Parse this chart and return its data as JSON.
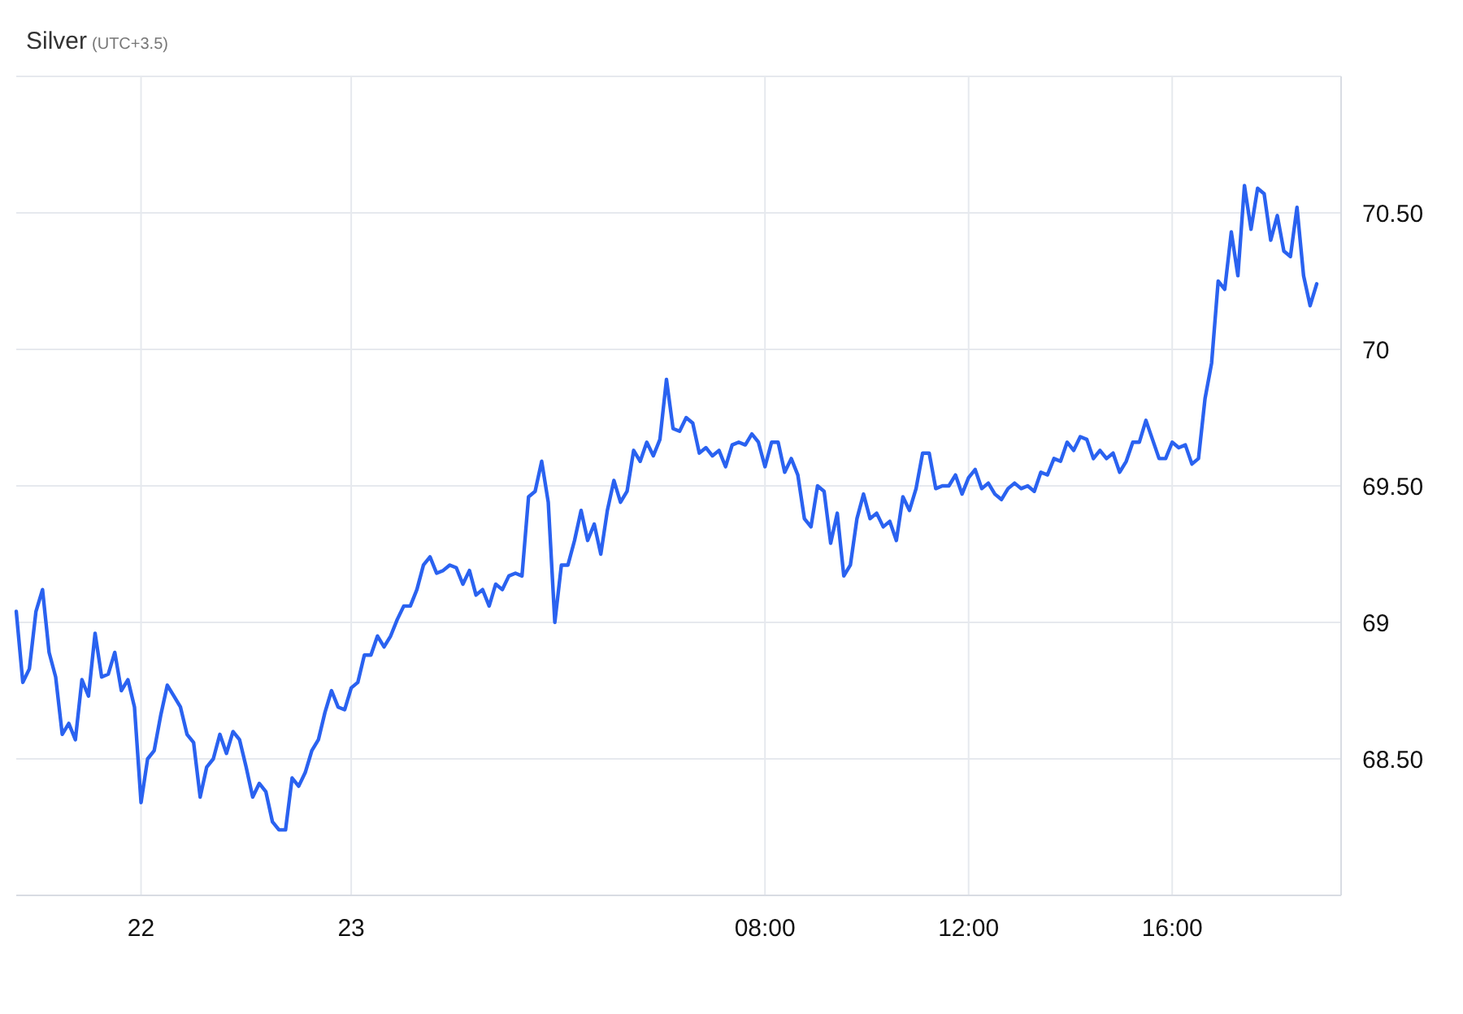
{
  "chart_data": {
    "type": "line",
    "title": "Silver",
    "subtitle": "(UTC+3.5)",
    "categories": [
      null,
      null,
      null,
      null,
      null,
      null,
      null,
      null,
      null,
      null,
      null,
      null,
      null,
      null,
      null,
      null,
      null,
      null,
      null,
      "22",
      null,
      null,
      null,
      null,
      null,
      null,
      null,
      null,
      null,
      null,
      null,
      null,
      null,
      null,
      null,
      null,
      null,
      null,
      null,
      null,
      null,
      null,
      null,
      null,
      null,
      null,
      null,
      null,
      null,
      null,
      null,
      "23",
      null,
      null,
      null,
      null,
      null,
      null,
      null,
      null,
      null,
      null,
      null,
      null,
      null,
      null,
      null,
      null,
      null,
      null,
      null,
      null,
      null,
      null,
      null,
      null,
      null,
      null,
      null,
      null,
      null,
      null,
      null,
      null,
      null,
      null,
      null,
      null,
      null,
      null,
      null,
      null,
      null,
      null,
      null,
      null,
      null,
      null,
      null,
      null,
      null,
      null,
      null,
      null,
      null,
      null,
      null,
      null,
      null,
      null,
      null,
      null,
      null,
      null,
      "08:00",
      null,
      null,
      null,
      null,
      null,
      null,
      null,
      null,
      null,
      null,
      null,
      null,
      null,
      null,
      null,
      null,
      null,
      null,
      null,
      null,
      null,
      null,
      null,
      null,
      null,
      null,
      null,
      null,
      null,
      null,
      "12:00",
      null,
      null,
      null,
      null,
      null,
      null,
      null,
      null,
      null,
      null,
      null,
      null,
      null,
      null,
      null,
      null,
      null,
      null,
      null,
      null,
      null,
      null,
      null,
      null,
      null,
      null,
      null,
      null,
      null,
      null,
      "16:00",
      null,
      null,
      null,
      null,
      null,
      null,
      null,
      null,
      null,
      null,
      null,
      null,
      null,
      null,
      null,
      null,
      null,
      null,
      null,
      null,
      null,
      null
    ],
    "ylim": [
      68,
      71
    ],
    "yticks": [
      {
        "value": 68.5,
        "label": "68.50"
      },
      69,
      {
        "value": 69.5,
        "label": "69.50"
      },
      70,
      {
        "value": 70.5,
        "label": "70.50"
      }
    ],
    "grid": true,
    "line_style": "solid",
    "series": [
      {
        "color": "#2a62f0",
        "values": [
          69.04,
          68.78,
          68.83,
          69.04,
          69.12,
          68.89,
          68.8,
          68.59,
          68.63,
          68.57,
          68.79,
          68.73,
          68.96,
          68.8,
          68.81,
          68.89,
          68.75,
          68.79,
          68.69,
          68.34,
          68.5,
          68.53,
          68.66,
          68.77,
          68.73,
          68.69,
          68.59,
          68.56,
          68.36,
          68.47,
          68.5,
          68.59,
          68.52,
          68.6,
          68.57,
          68.47,
          68.36,
          68.41,
          68.38,
          68.27,
          68.24,
          68.24,
          68.43,
          68.4,
          68.45,
          68.53,
          68.57,
          68.67,
          68.75,
          68.69,
          68.68,
          68.76,
          68.78,
          68.88,
          68.88,
          68.95,
          68.91,
          68.95,
          69.01,
          69.06,
          69.06,
          69.12,
          69.21,
          69.24,
          69.18,
          69.19,
          69.21,
          69.2,
          69.14,
          69.19,
          69.1,
          69.12,
          69.06,
          69.14,
          69.12,
          69.17,
          69.18,
          69.17,
          69.46,
          69.48,
          69.59,
          69.44,
          69.0,
          69.21,
          69.21,
          69.3,
          69.41,
          69.3,
          69.36,
          69.25,
          69.41,
          69.52,
          69.44,
          69.48,
          69.63,
          69.59,
          69.66,
          69.61,
          69.67,
          69.89,
          69.71,
          69.7,
          69.75,
          69.73,
          69.62,
          69.64,
          69.61,
          69.63,
          69.57,
          69.65,
          69.66,
          69.65,
          69.69,
          69.66,
          69.57,
          69.66,
          69.66,
          69.55,
          69.6,
          69.54,
          69.38,
          69.35,
          69.5,
          69.48,
          69.29,
          69.4,
          69.17,
          69.21,
          69.38,
          69.47,
          69.38,
          69.4,
          69.35,
          69.37,
          69.3,
          69.46,
          69.41,
          69.49,
          69.62,
          69.62,
          69.49,
          69.5,
          69.5,
          69.54,
          69.47,
          69.53,
          69.56,
          69.49,
          69.51,
          69.47,
          69.45,
          69.49,
          69.51,
          69.49,
          69.5,
          69.48,
          69.55,
          69.54,
          69.6,
          69.59,
          69.66,
          69.63,
          69.68,
          69.67,
          69.6,
          69.63,
          69.6,
          69.62,
          69.55,
          69.59,
          69.66,
          69.66,
          69.74,
          69.67,
          69.6,
          69.6,
          69.66,
          69.64,
          69.65,
          69.58,
          69.6,
          69.82,
          69.95,
          70.25,
          70.22,
          70.43,
          70.27,
          70.6,
          70.44,
          70.59,
          70.57,
          70.4,
          70.49,
          70.36,
          70.34,
          70.52,
          70.27,
          70.16,
          70.24
        ]
      }
    ]
  }
}
